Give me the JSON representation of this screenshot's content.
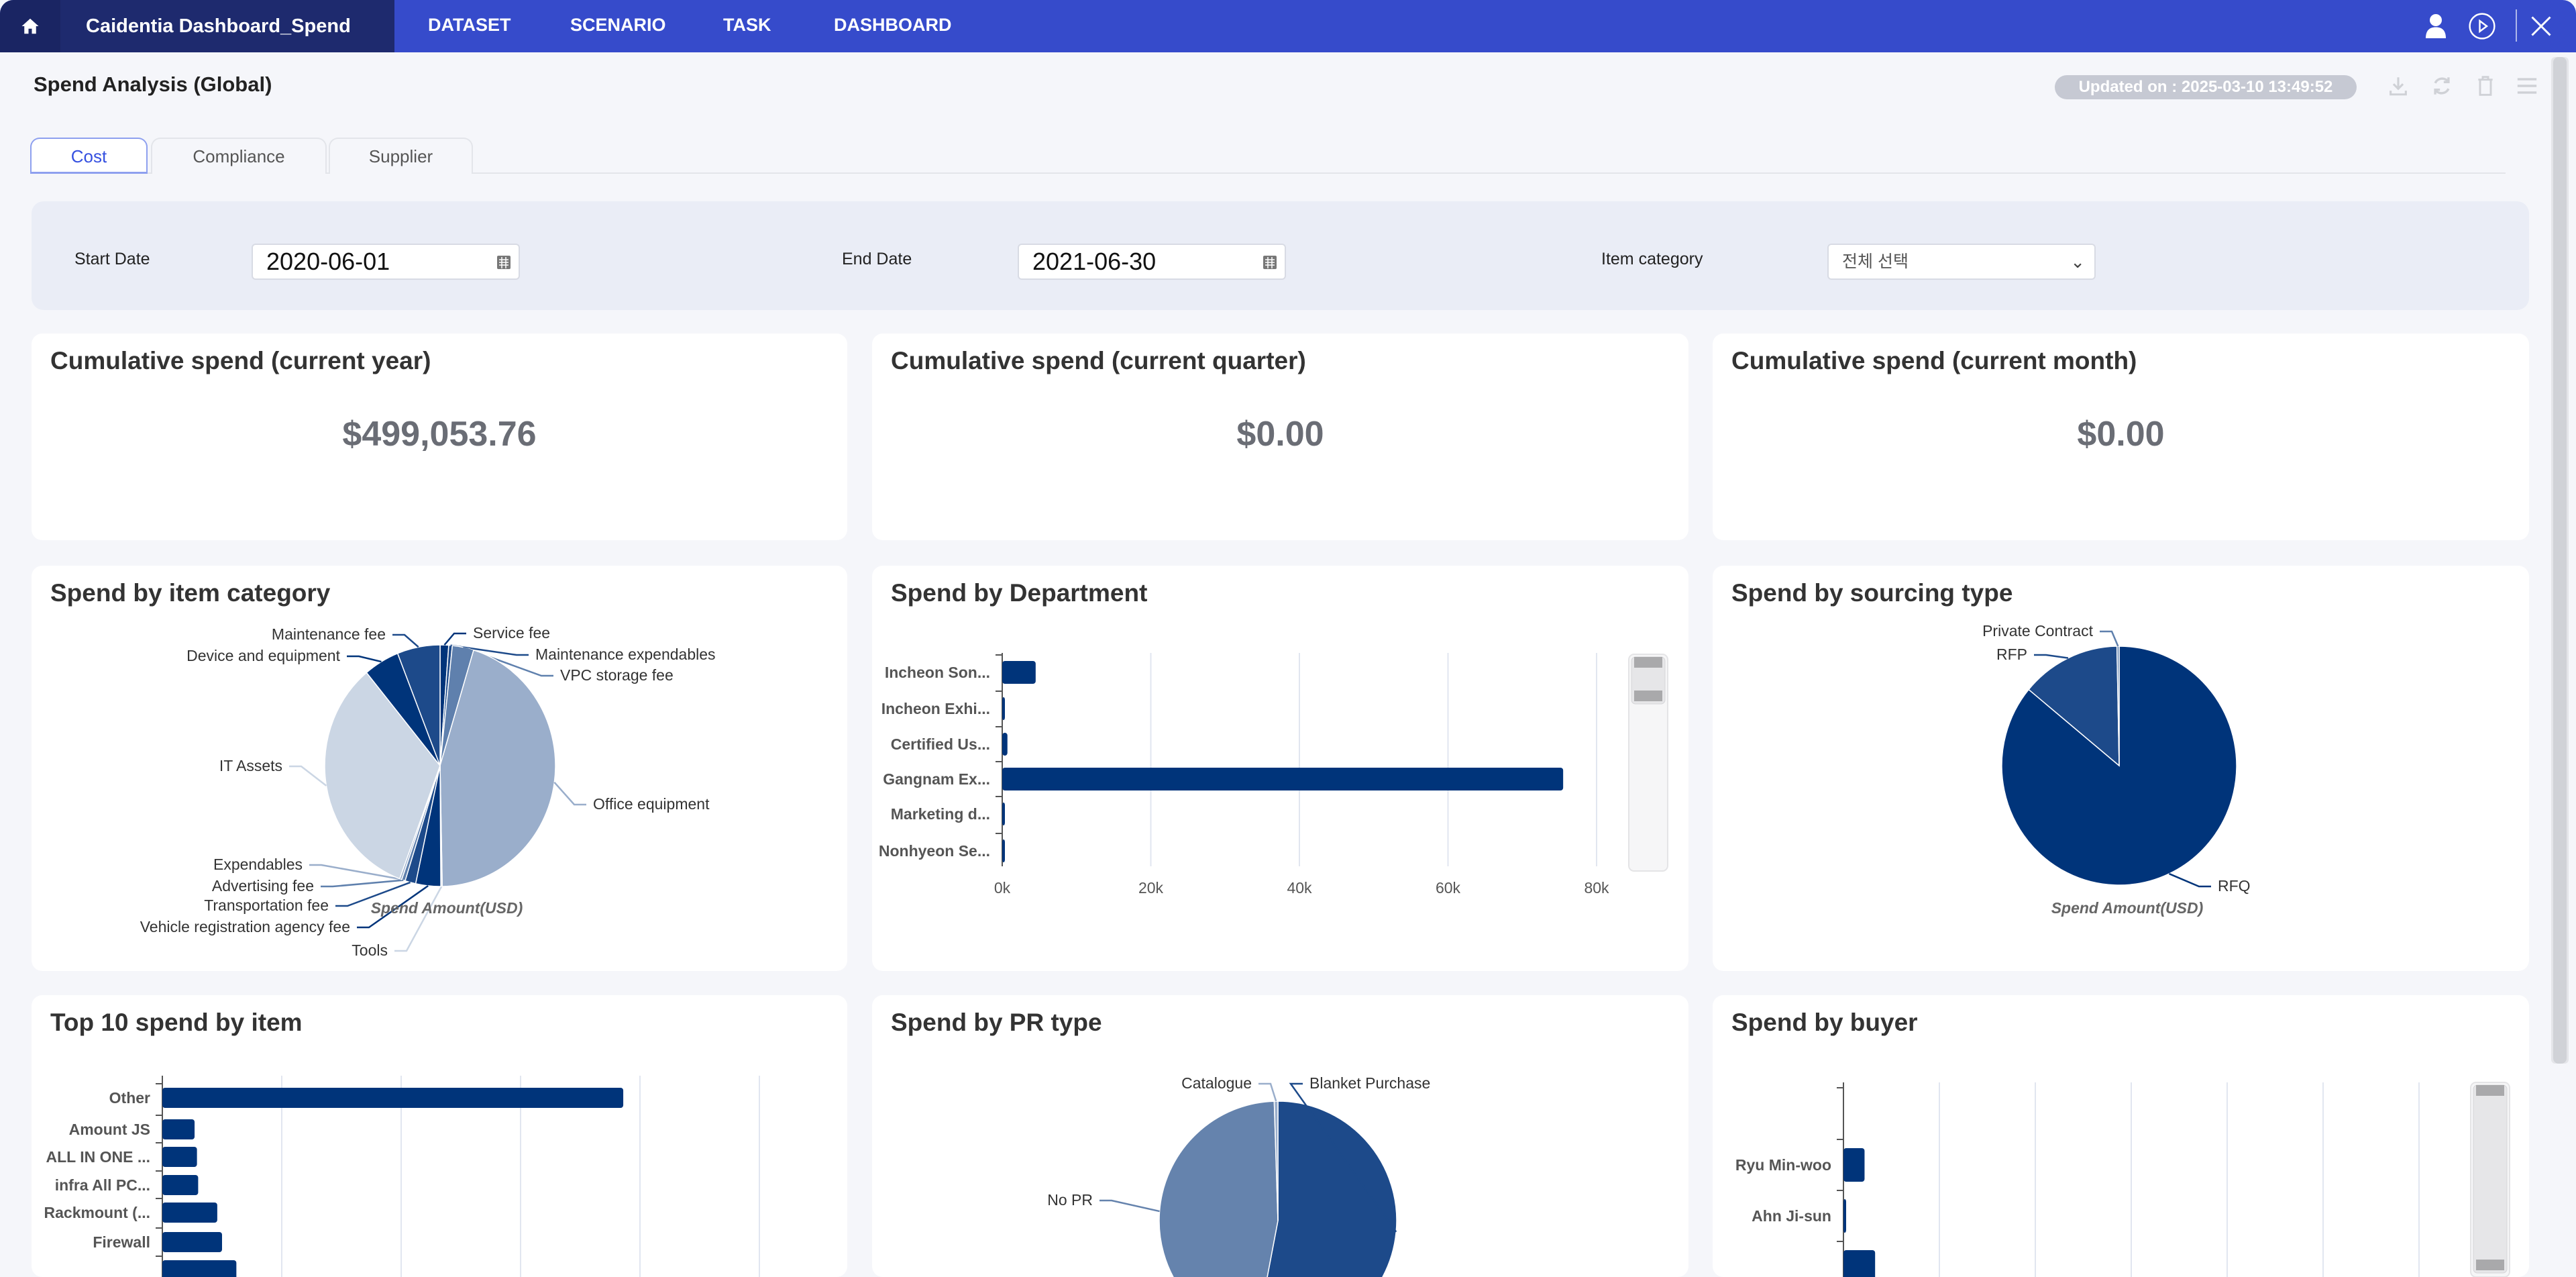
{
  "app": {
    "title": "Caidentia Dashboard_Spend"
  },
  "nav": [
    "DATASET",
    "SCENARIO",
    "TASK",
    "DASHBOARD"
  ],
  "header": {
    "page_title": "Spend Analysis (Global)",
    "updated": "Updated on : 2025-03-10 13:49:52"
  },
  "tabs": [
    "Cost",
    "Compliance",
    "Supplier"
  ],
  "filters": {
    "start_label": "Start Date",
    "start_value": "2020-06-01",
    "end_label": "End Date",
    "end_value": "2021-06-30",
    "category_label": "Item category",
    "category_value": "전체 선택"
  },
  "kpis": [
    {
      "title": "Cumulative spend (current year)",
      "value": "$499,053.76"
    },
    {
      "title": "Cumulative spend (current quarter)",
      "value": "$0.00"
    },
    {
      "title": "Cumulative spend (current month)",
      "value": "$0.00"
    }
  ],
  "colors": {
    "accent": "#364bcb",
    "navy": "#00347a"
  },
  "chart_data": [
    {
      "id": "item-category",
      "type": "pie",
      "title": "Spend by item category",
      "xlabel": "Spend Amount(USD)",
      "slices": [
        {
          "label": "Service fee",
          "value": 1.2,
          "color": "#00347a"
        },
        {
          "label": "Maintenance expendables",
          "value": 0.5,
          "color": "#1d4a8a"
        },
        {
          "label": "VPC storage fee",
          "value": 3.0,
          "color": "#5f80ad"
        },
        {
          "label": "Office equipment",
          "value": 45.0,
          "color": "#9aaecb"
        },
        {
          "label": "Tools",
          "value": 0.2,
          "color": "#cbd6e4"
        },
        {
          "label": "Vehicle registration agency fee",
          "value": 3.5,
          "color": "#00347a"
        },
        {
          "label": "Transportation fee",
          "value": 1.5,
          "color": "#1d4a8a"
        },
        {
          "label": "Advertising fee",
          "value": 0.5,
          "color": "#5f80ad"
        },
        {
          "label": "Expendables",
          "value": 0.3,
          "color": "#9aaecb"
        },
        {
          "label": "IT Assets",
          "value": 33.3,
          "color": "#cbd6e4"
        },
        {
          "label": "Device and equipment",
          "value": 5.0,
          "color": "#00347a"
        },
        {
          "label": "Maintenance fee",
          "value": 6.0,
          "color": "#1d4a8a"
        }
      ]
    },
    {
      "id": "department",
      "type": "bar",
      "title": "Spend by Department",
      "orientation": "horizontal",
      "categories": [
        "Incheon Son...",
        "Incheon Exhi...",
        "Certified Us...",
        "Gangnam Ex...",
        "Marketing d...",
        "Nonhyeon Se..."
      ],
      "values": [
        4500,
        200,
        700,
        75500,
        200,
        100
      ],
      "ticks": [
        "0k",
        "20k",
        "40k",
        "60k",
        "80k"
      ],
      "xlim": [
        0,
        80000
      ]
    },
    {
      "id": "sourcing",
      "type": "pie",
      "title": "Spend by sourcing type",
      "xlabel": "Spend Amount(USD)",
      "slices": [
        {
          "label": "RFQ",
          "value": 86.0,
          "color": "#00347a"
        },
        {
          "label": "RFP",
          "value": 13.7,
          "color": "#1d4a8a"
        },
        {
          "label": "Private Contract",
          "value": 0.3,
          "color": "#5f80ad"
        }
      ]
    },
    {
      "id": "top10",
      "type": "bar",
      "title": "Top 10 spend by item",
      "orientation": "horizontal",
      "categories": [
        "Other",
        "Amount JS",
        "ALL IN ONE ...",
        "infra All PC...",
        "Rackmount (...",
        "Firewall",
        ""
      ],
      "values": [
        3.86,
        0.27,
        0.29,
        0.3,
        0.46,
        0.5,
        0.62
      ],
      "xlim": [
        0,
        5
      ]
    },
    {
      "id": "pr-type",
      "type": "pie",
      "title": "Spend by PR type",
      "slices": [
        {
          "label": "Blanket Purchase",
          "value": 53.0,
          "color": "#1d4a8a"
        },
        {
          "label": "No PR",
          "value": 46.5,
          "color": "#6583ad"
        },
        {
          "label": "Catalogue",
          "value": 0.5,
          "color": "#9aaecb"
        }
      ]
    },
    {
      "id": "buyer",
      "type": "bar",
      "title": "Spend by buyer",
      "orientation": "horizontal",
      "categories": [
        "",
        "Ryu Min-woo",
        "Ahn Ji-sun",
        ""
      ],
      "values": [
        0,
        0.22,
        0.02,
        0.33
      ],
      "xlim": [
        0,
        6
      ]
    }
  ]
}
